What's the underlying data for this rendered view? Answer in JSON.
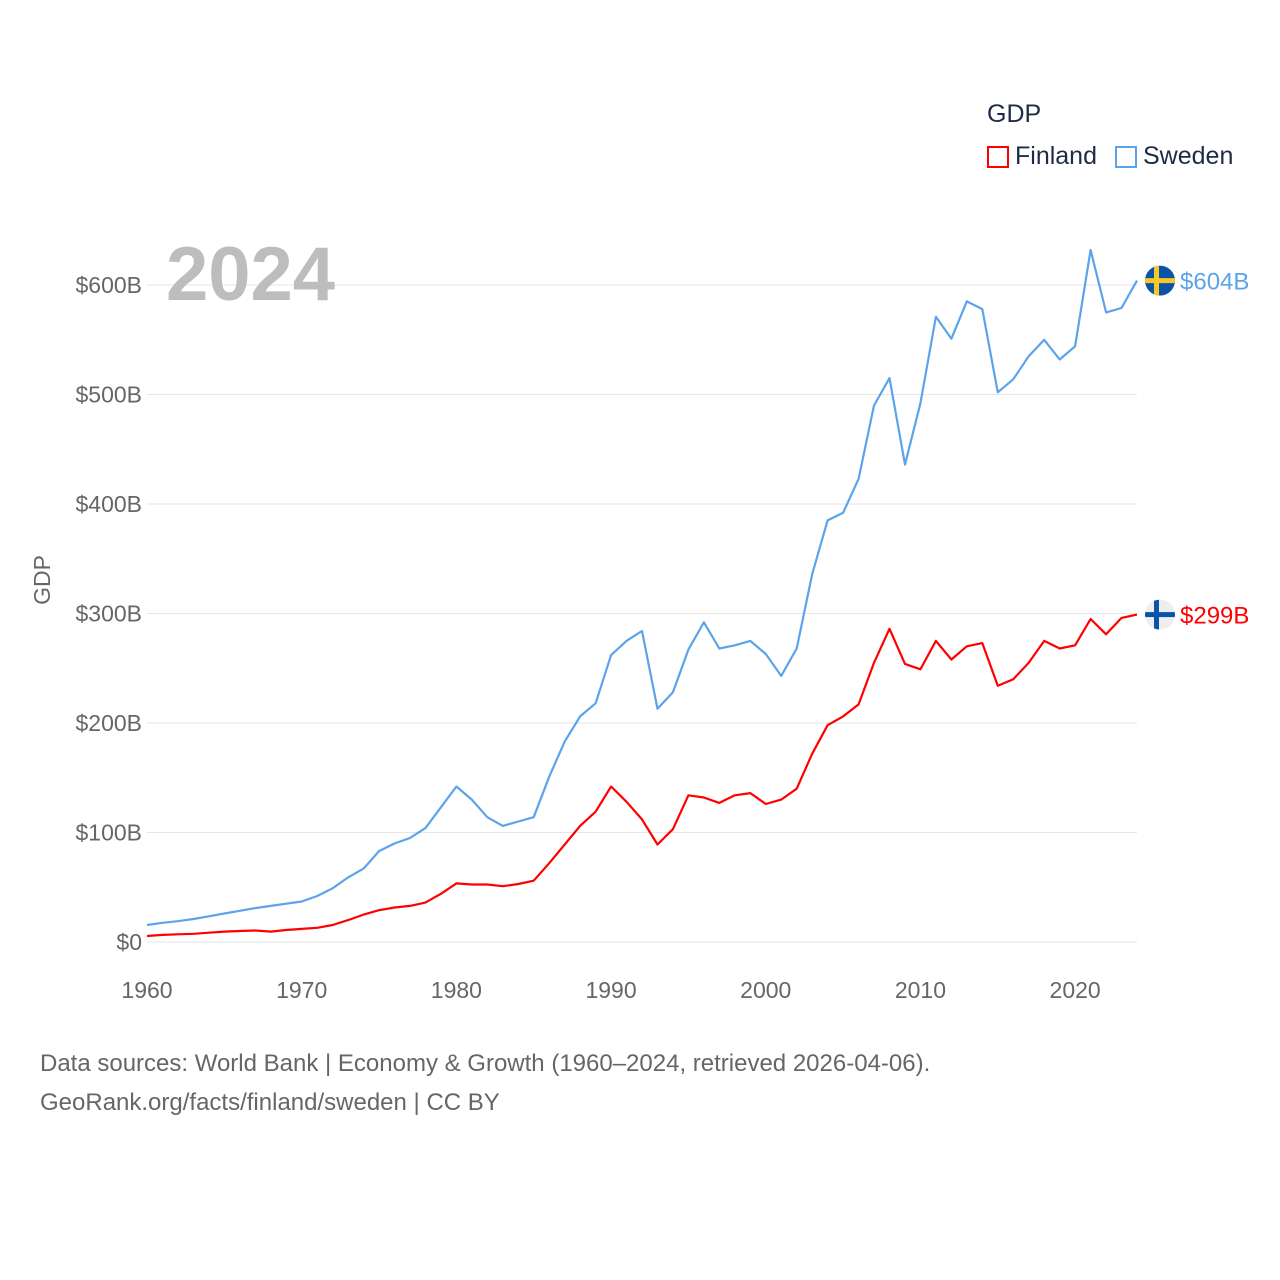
{
  "chart_data": {
    "type": "line",
    "title": "GDP",
    "ylabel": "GDP",
    "xlabel": "",
    "year_label": "2024",
    "xlim": [
      1960,
      2024
    ],
    "ylim": [
      0,
      600
    ],
    "grid": true,
    "legend_placement": "top-right",
    "x_ticks": [
      "1960",
      "1970",
      "1980",
      "1990",
      "2000",
      "2010",
      "2020"
    ],
    "y_ticks": [
      {
        "value": 0,
        "label": "$0"
      },
      {
        "value": 100,
        "label": "$100B"
      },
      {
        "value": 200,
        "label": "$200B"
      },
      {
        "value": 300,
        "label": "$300B"
      },
      {
        "value": 400,
        "label": "$400B"
      },
      {
        "value": 500,
        "label": "$500B"
      },
      {
        "value": 600,
        "label": "$600B"
      }
    ],
    "x": [
      1960,
      1961,
      1962,
      1963,
      1964,
      1965,
      1966,
      1967,
      1968,
      1969,
      1970,
      1971,
      1972,
      1973,
      1974,
      1975,
      1976,
      1977,
      1978,
      1979,
      1980,
      1981,
      1982,
      1983,
      1984,
      1985,
      1986,
      1987,
      1988,
      1989,
      1990,
      1991,
      1992,
      1993,
      1994,
      1995,
      1996,
      1997,
      1998,
      1999,
      2000,
      2001,
      2002,
      2003,
      2004,
      2005,
      2006,
      2007,
      2008,
      2009,
      2010,
      2011,
      2012,
      2013,
      2014,
      2015,
      2016,
      2017,
      2018,
      2019,
      2020,
      2021,
      2022,
      2023,
      2024
    ],
    "series": [
      {
        "name": "Finland",
        "color": "#ff0000",
        "end_label": "$299B",
        "flag": "finland-flag",
        "values": [
          5.5,
          6.5,
          7,
          7.5,
          8.5,
          9.5,
          10,
          10.5,
          9.5,
          11,
          12,
          13,
          15.5,
          20,
          25,
          29,
          31.5,
          33,
          36,
          44,
          53.5,
          52.5,
          52.5,
          51,
          53,
          56,
          72,
          89,
          106,
          119,
          142,
          128,
          112,
          89,
          103,
          134,
          132,
          127,
          134,
          136,
          126,
          130,
          140,
          172,
          198,
          206,
          217,
          255,
          286,
          254,
          249,
          275,
          258,
          270,
          273,
          234,
          240,
          255,
          275,
          268,
          271,
          295,
          281,
          296,
          299
        ]
      },
      {
        "name": "Sweden",
        "color": "#5ba3ea",
        "end_label": "$604B",
        "flag": "sweden-flag",
        "values": [
          15.5,
          17.5,
          19,
          21,
          23.5,
          26,
          28.5,
          31,
          33,
          35,
          37,
          42,
          49,
          59,
          67,
          83,
          90,
          95,
          104,
          123,
          142,
          130,
          114,
          106,
          110,
          114,
          151,
          183,
          206,
          218,
          262,
          275,
          284,
          213,
          228,
          267,
          292,
          268,
          271,
          275,
          263,
          243,
          268,
          336,
          385,
          392,
          423,
          490,
          515,
          436,
          492,
          571,
          551,
          585,
          578,
          502,
          514,
          535,
          550,
          532,
          544,
          632,
          575,
          579,
          604
        ]
      }
    ]
  },
  "footer": {
    "line1": "Data sources: World Bank | Economy & Growth (1960–2024, retrieved 2026-04-06).",
    "line2": "GeoRank.org/facts/finland/sweden | CC BY"
  }
}
